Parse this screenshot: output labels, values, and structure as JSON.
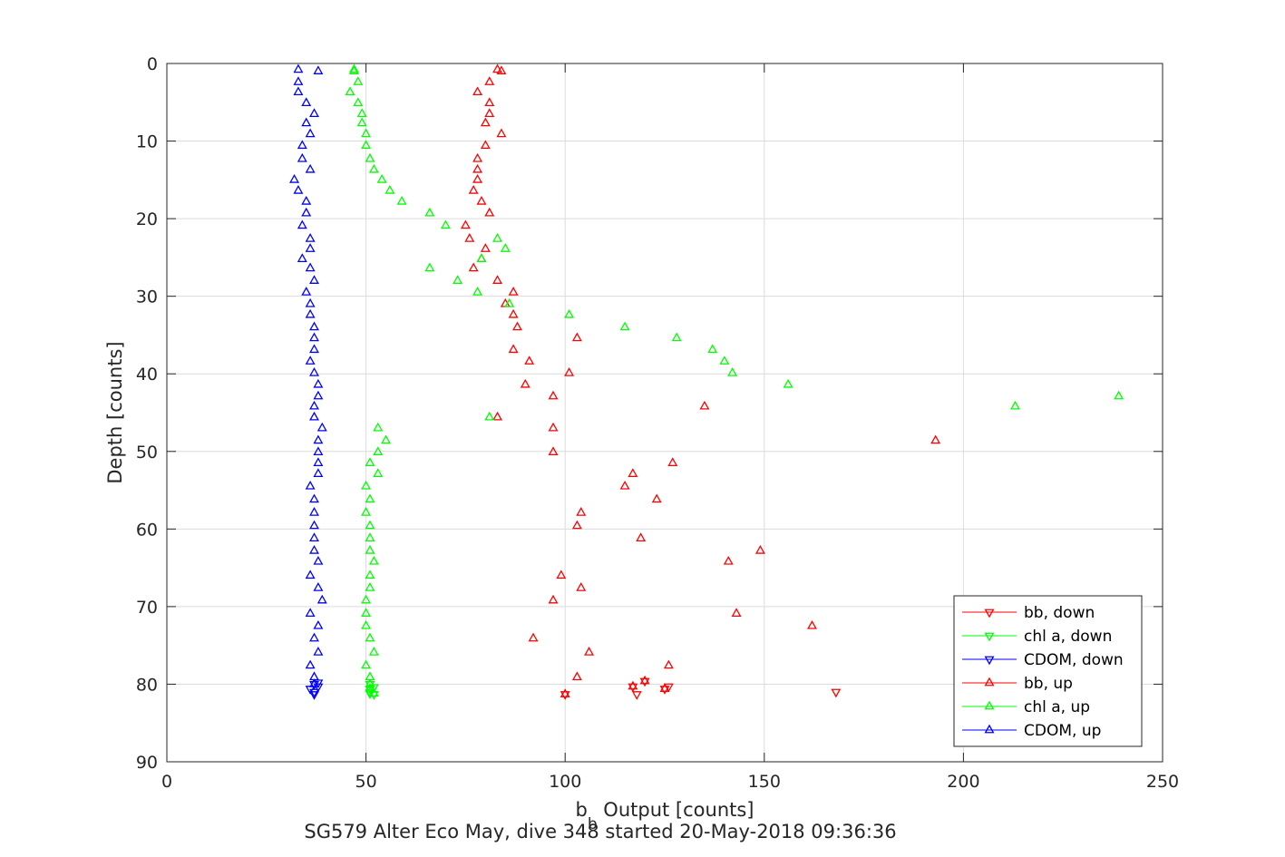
{
  "chart_data": {
    "type": "scatter",
    "xlabel": "b",
    "xlabel_sub": "b",
    "xlabel_rest": " Output [counts]",
    "ylabel": "Depth [counts]",
    "title": "SG579 Alter Eco May, dive 348 started 20-May-2018 09:36:36",
    "xlim": [
      0,
      250
    ],
    "ylim": [
      0,
      90
    ],
    "y_reversed": true,
    "xticks": [
      "0",
      "50",
      "100",
      "150",
      "200",
      "250"
    ],
    "yticks": [
      "0",
      "10",
      "20",
      "30",
      "40",
      "50",
      "60",
      "70",
      "80",
      "90"
    ],
    "grid": true,
    "legend_position": "bottom-right",
    "series": [
      {
        "name": "bb, down",
        "color": "#ff0000",
        "marker": "triangle-down",
        "x": [
          100,
          117,
          118,
          120,
          125,
          126,
          168
        ],
        "y": [
          81.3,
          80.3,
          81.3,
          79.6,
          80.6,
          80.3,
          81.0
        ]
      },
      {
        "name": "chl a, down",
        "color": "#00ff00",
        "marker": "triangle-down",
        "x": [
          51,
          51,
          52,
          51,
          51,
          52
        ],
        "y": [
          80.0,
          80.6,
          80.4,
          81.0,
          81.2,
          81.3
        ]
      },
      {
        "name": "CDOM, down",
        "color": "#0000ff",
        "marker": "triangle-down",
        "x": [
          37,
          36,
          37,
          38,
          37,
          38
        ],
        "y": [
          80.0,
          80.6,
          81.0,
          80.3,
          81.3,
          79.8
        ]
      },
      {
        "name": "bb, up",
        "color": "#ff0000",
        "marker": "triangle-up",
        "x": [
          83,
          84,
          81,
          78,
          81,
          81,
          80,
          84,
          80,
          78,
          78,
          78,
          77,
          79,
          81,
          75,
          76,
          80,
          79,
          77,
          83,
          87,
          85,
          87,
          88,
          103,
          87,
          91,
          101,
          90,
          97,
          135,
          83,
          97,
          193,
          97,
          127,
          117,
          115,
          123,
          104,
          103,
          119,
          149,
          141,
          99,
          104,
          97,
          143,
          162,
          92,
          106,
          126,
          103,
          117,
          125,
          120,
          100
        ],
        "y": [
          0.8,
          1.0,
          2.4,
          3.7,
          5.1,
          6.5,
          7.7,
          9.1,
          10.6,
          12.3,
          13.7,
          15.0,
          16.4,
          17.8,
          19.3,
          20.9,
          22.6,
          23.9,
          25.2,
          26.4,
          28.0,
          29.5,
          31.0,
          32.4,
          34.0,
          35.4,
          36.9,
          38.4,
          39.9,
          41.4,
          42.9,
          44.2,
          45.6,
          47.0,
          48.6,
          50.1,
          51.5,
          52.9,
          54.5,
          56.2,
          57.9,
          59.6,
          61.2,
          62.8,
          64.2,
          66.0,
          67.6,
          69.2,
          70.9,
          72.5,
          74.1,
          75.9,
          77.6,
          79.1,
          80.3,
          80.6,
          79.6,
          81.3
        ]
      },
      {
        "name": "chl a, up",
        "color": "#00ff00",
        "marker": "triangle-up",
        "x": [
          47,
          47,
          48,
          46,
          48,
          49,
          49,
          50,
          50,
          51,
          52,
          54,
          56,
          59,
          66,
          70,
          83,
          85,
          79,
          66,
          73,
          78,
          86,
          101,
          115,
          128,
          137,
          140,
          142,
          156,
          239,
          213,
          81,
          53,
          55,
          53,
          51,
          53,
          50,
          51,
          50,
          51,
          51,
          51,
          52,
          51,
          51,
          50,
          50,
          50,
          51,
          52,
          50,
          51,
          51,
          51,
          52
        ],
        "y": [
          0.8,
          1.0,
          2.4,
          3.7,
          5.1,
          6.5,
          7.7,
          9.1,
          10.6,
          12.3,
          13.7,
          15.0,
          16.4,
          17.8,
          19.3,
          20.9,
          22.6,
          23.9,
          25.2,
          26.4,
          28.0,
          29.5,
          31.0,
          32.4,
          34.0,
          35.4,
          36.9,
          38.4,
          39.9,
          41.4,
          42.9,
          44.2,
          45.6,
          47.0,
          48.6,
          50.1,
          51.5,
          52.9,
          54.5,
          56.2,
          57.9,
          59.6,
          61.2,
          62.8,
          64.2,
          66.0,
          67.6,
          69.2,
          70.9,
          72.5,
          74.1,
          75.9,
          77.6,
          79.1,
          80.0,
          80.6,
          81.2
        ]
      },
      {
        "name": "CDOM, up",
        "color": "#0000ff",
        "marker": "triangle-up",
        "x": [
          33,
          38,
          33,
          33,
          35,
          37,
          35,
          36,
          34,
          34,
          36,
          32,
          33,
          35,
          35,
          34,
          36,
          36,
          34,
          36,
          37,
          35,
          36,
          36,
          37,
          37,
          37,
          36,
          37,
          38,
          38,
          37,
          37,
          39,
          38,
          38,
          38,
          38,
          36,
          37,
          37,
          37,
          37,
          37,
          38,
          36,
          38,
          39,
          36,
          38,
          37,
          38,
          36,
          37,
          37
        ],
        "y": [
          0.8,
          1.0,
          2.4,
          3.7,
          5.1,
          6.5,
          7.7,
          9.1,
          10.6,
          12.3,
          13.7,
          15.0,
          16.4,
          17.8,
          19.3,
          20.9,
          22.6,
          23.9,
          25.2,
          26.4,
          28.0,
          29.5,
          31.0,
          32.4,
          34.0,
          35.4,
          36.9,
          38.4,
          39.9,
          41.4,
          42.9,
          44.2,
          45.6,
          47.0,
          48.6,
          50.1,
          51.5,
          52.9,
          54.5,
          56.2,
          57.9,
          59.6,
          61.2,
          62.8,
          64.2,
          66.0,
          67.6,
          69.2,
          70.9,
          72.5,
          74.1,
          75.9,
          77.6,
          79.1,
          80.0
        ]
      }
    ]
  }
}
